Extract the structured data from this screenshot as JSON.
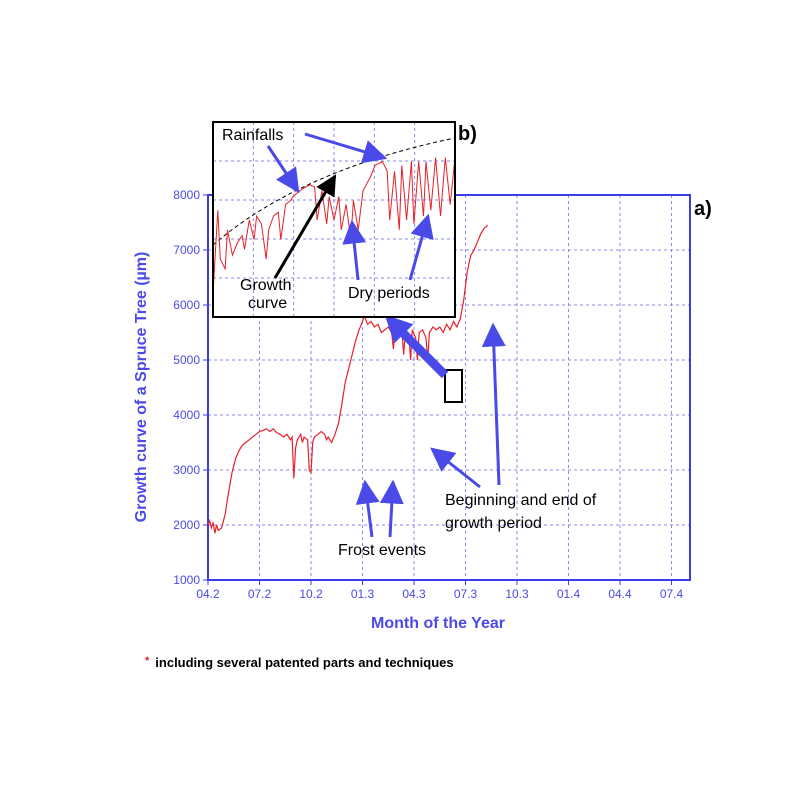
{
  "chart_data": [
    {
      "panel": "a)",
      "type": "line",
      "xlabel": "Month of the Year",
      "ylabel": "Growth curve of a Spruce Tree (µm)",
      "x_ticks": [
        "04.2",
        "07.2",
        "10.2",
        "01.3",
        "04.3",
        "07.3",
        "10.3",
        "01.4",
        "04.4",
        "07.4"
      ],
      "y_ticks": [
        1000,
        2000,
        3000,
        4000,
        5000,
        6000,
        7000,
        8000
      ],
      "ylim": [
        1000,
        8000
      ],
      "grid": true,
      "series": [
        {
          "color": "#e8202a",
          "points": [
            [
              0.0,
              2000
            ],
            [
              0.1,
              2080
            ],
            [
              0.2,
              1950
            ],
            [
              0.3,
              2050
            ],
            [
              0.4,
              1850
            ],
            [
              0.5,
              2000
            ],
            [
              0.6,
              1900
            ],
            [
              0.8,
              1950
            ],
            [
              1.0,
              2200
            ],
            [
              1.2,
              2600
            ],
            [
              1.4,
              2950
            ],
            [
              1.6,
              3200
            ],
            [
              1.8,
              3350
            ],
            [
              2.0,
              3450
            ],
            [
              2.2,
              3500
            ],
            [
              2.4,
              3550
            ],
            [
              2.6,
              3600
            ],
            [
              2.8,
              3650
            ],
            [
              3.0,
              3700
            ],
            [
              3.2,
              3720
            ],
            [
              3.4,
              3750
            ],
            [
              3.6,
              3700
            ],
            [
              3.8,
              3750
            ],
            [
              4.0,
              3680
            ],
            [
              4.2,
              3650
            ],
            [
              4.4,
              3600
            ],
            [
              4.6,
              3650
            ],
            [
              4.8,
              3550
            ],
            [
              4.9,
              3600
            ],
            [
              5.0,
              2850
            ],
            [
              5.1,
              3400
            ],
            [
              5.2,
              3550
            ],
            [
              5.4,
              3650
            ],
            [
              5.5,
              3500
            ],
            [
              5.6,
              3600
            ],
            [
              5.8,
              3550
            ],
            [
              5.9,
              3000
            ],
            [
              6.0,
              2950
            ],
            [
              6.1,
              3500
            ],
            [
              6.2,
              3600
            ],
            [
              6.4,
              3650
            ],
            [
              6.6,
              3700
            ],
            [
              6.8,
              3650
            ],
            [
              6.9,
              3550
            ],
            [
              7.0,
              3600
            ],
            [
              7.2,
              3500
            ],
            [
              7.4,
              3650
            ],
            [
              7.6,
              3850
            ],
            [
              7.8,
              4200
            ],
            [
              8.0,
              4600
            ],
            [
              8.2,
              4850
            ],
            [
              8.4,
              5100
            ],
            [
              8.6,
              5350
            ],
            [
              8.8,
              5550
            ],
            [
              9.0,
              5700
            ],
            [
              9.1,
              5800
            ],
            [
              9.3,
              5650
            ],
            [
              9.5,
              5700
            ],
            [
              9.7,
              5600
            ],
            [
              9.9,
              5650
            ],
            [
              10.1,
              5500
            ],
            [
              10.3,
              5550
            ],
            [
              10.5,
              5600
            ],
            [
              10.7,
              5500
            ],
            [
              10.8,
              5200
            ],
            [
              10.9,
              5550
            ],
            [
              11.1,
              5600
            ],
            [
              11.3,
              5500
            ],
            [
              11.4,
              5100
            ],
            [
              11.5,
              5550
            ],
            [
              11.7,
              5450
            ],
            [
              11.8,
              5000
            ],
            [
              11.9,
              5550
            ],
            [
              12.1,
              5400
            ],
            [
              12.2,
              5000
            ],
            [
              12.3,
              5500
            ],
            [
              12.5,
              5550
            ],
            [
              12.7,
              5400
            ],
            [
              12.8,
              5000
            ],
            [
              12.9,
              5500
            ],
            [
              13.1,
              5600
            ],
            [
              13.3,
              5550
            ],
            [
              13.5,
              5600
            ],
            [
              13.7,
              5500
            ],
            [
              13.9,
              5650
            ],
            [
              14.1,
              5550
            ],
            [
              14.3,
              5700
            ],
            [
              14.5,
              5600
            ],
            [
              14.7,
              5750
            ],
            [
              14.9,
              6100
            ],
            [
              15.1,
              6600
            ],
            [
              15.3,
              6900
            ],
            [
              15.5,
              7000
            ],
            [
              15.7,
              7150
            ],
            [
              15.9,
              7300
            ],
            [
              16.1,
              7400
            ],
            [
              16.3,
              7450
            ]
          ]
        }
      ]
    },
    {
      "panel": "b)",
      "type": "line",
      "grid": true,
      "series": [
        {
          "color": "#e8202a",
          "points": [
            [
              0.0,
              0.22
            ],
            [
              0.02,
              0.65
            ],
            [
              0.03,
              0.4
            ],
            [
              0.05,
              0.35
            ],
            [
              0.06,
              0.55
            ],
            [
              0.08,
              0.42
            ],
            [
              0.1,
              0.48
            ],
            [
              0.12,
              0.52
            ],
            [
              0.13,
              0.45
            ],
            [
              0.15,
              0.6
            ],
            [
              0.17,
              0.5
            ],
            [
              0.18,
              0.62
            ],
            [
              0.2,
              0.58
            ],
            [
              0.22,
              0.4
            ],
            [
              0.23,
              0.55
            ],
            [
              0.25,
              0.62
            ],
            [
              0.27,
              0.64
            ],
            [
              0.28,
              0.5
            ],
            [
              0.3,
              0.68
            ],
            [
              0.32,
              0.7
            ],
            [
              0.33,
              0.72
            ],
            [
              0.35,
              0.74
            ],
            [
              0.37,
              0.76
            ],
            [
              0.4,
              0.78
            ],
            [
              0.42,
              0.77
            ],
            [
              0.43,
              0.6
            ],
            [
              0.45,
              0.75
            ],
            [
              0.47,
              0.58
            ],
            [
              0.48,
              0.72
            ],
            [
              0.5,
              0.6
            ],
            [
              0.52,
              0.72
            ],
            [
              0.53,
              0.55
            ],
            [
              0.55,
              0.68
            ],
            [
              0.57,
              0.5
            ],
            [
              0.58,
              0.7
            ],
            [
              0.6,
              0.55
            ],
            [
              0.62,
              0.75
            ],
            [
              0.65,
              0.82
            ],
            [
              0.67,
              0.88
            ],
            [
              0.7,
              0.9
            ],
            [
              0.72,
              0.85
            ],
            [
              0.73,
              0.6
            ],
            [
              0.75,
              0.85
            ],
            [
              0.77,
              0.55
            ],
            [
              0.78,
              0.88
            ],
            [
              0.8,
              0.6
            ],
            [
              0.82,
              0.9
            ],
            [
              0.83,
              0.58
            ],
            [
              0.85,
              0.9
            ],
            [
              0.87,
              0.62
            ],
            [
              0.88,
              0.9
            ],
            [
              0.9,
              0.65
            ],
            [
              0.92,
              0.92
            ],
            [
              0.94,
              0.62
            ],
            [
              0.96,
              0.92
            ],
            [
              0.98,
              0.68
            ],
            [
              1.0,
              0.92
            ]
          ]
        }
      ]
    }
  ],
  "annotations": {
    "panel_a": "a)",
    "panel_b": "b)",
    "rainfalls": "Rainfalls",
    "growth_curve_line1": "Growth",
    "growth_curve_line2": "curve",
    "dry_periods": "Dry periods",
    "growth_period_line1": "Beginning and end of",
    "growth_period_line2": "growth period",
    "frost_events": "Frost events"
  },
  "footnote": {
    "marker": "*",
    "text": "including several patented parts and techniques"
  },
  "colors": {
    "axis": "#3c3ce8",
    "grid": "#8a8ae8",
    "series": "#e8202a",
    "arrow": "#4a4ae8"
  }
}
